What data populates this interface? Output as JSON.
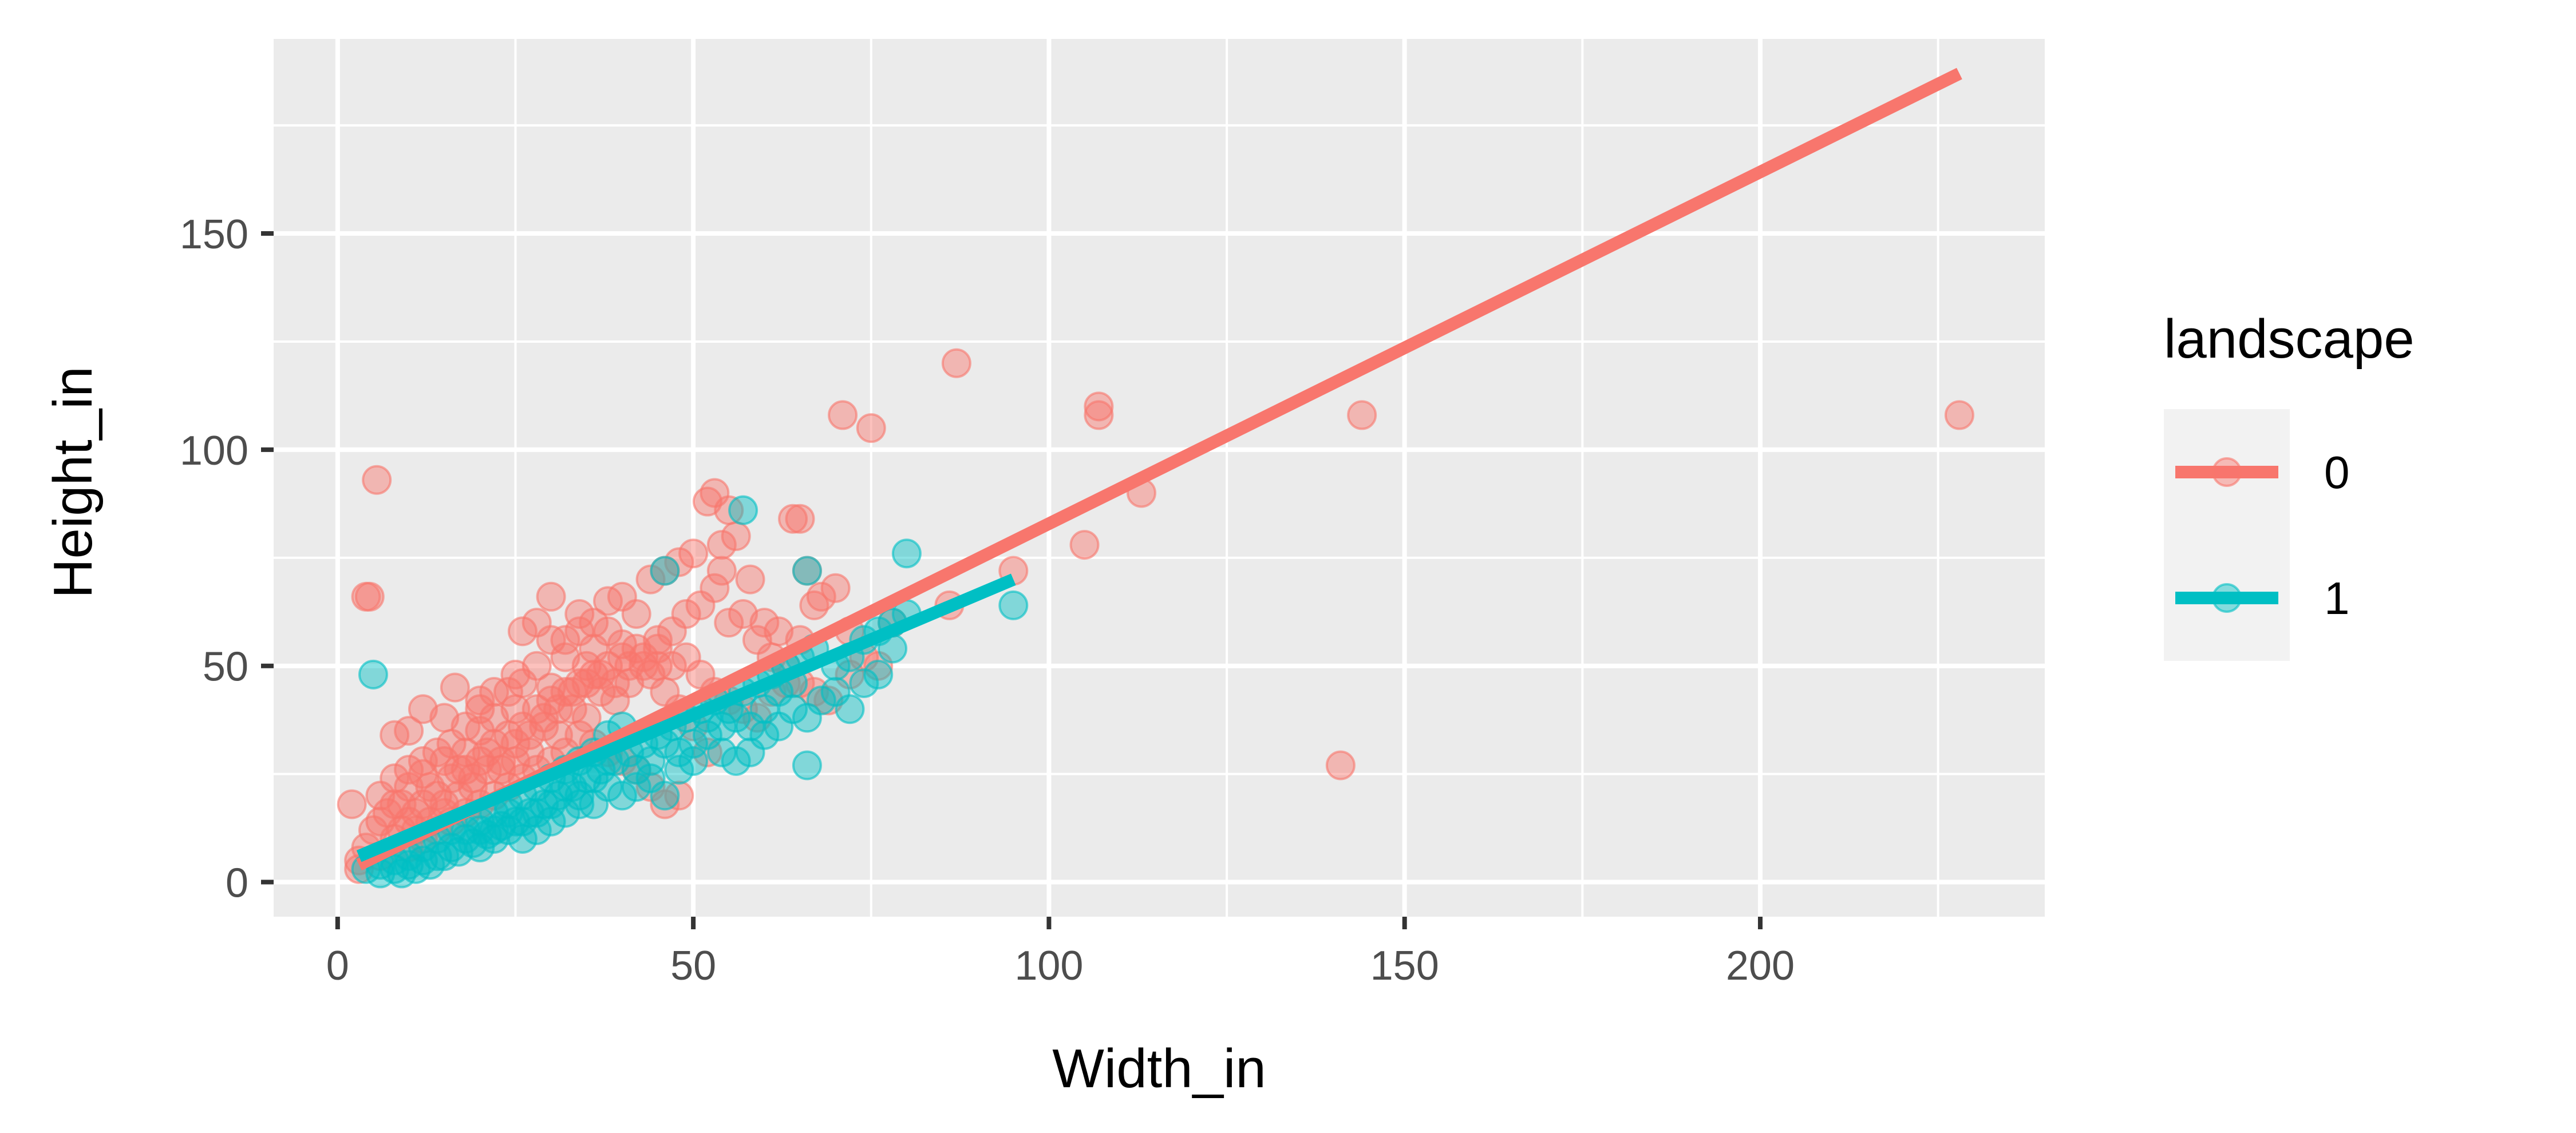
{
  "chart_data": {
    "type": "scatter",
    "title": "",
    "xlabel": "Width_in",
    "ylabel": "Height_in",
    "xlim": [
      -9,
      240
    ],
    "ylim": [
      -8,
      195
    ],
    "x_ticks": [
      0,
      50,
      100,
      150,
      200
    ],
    "y_ticks": [
      0,
      50,
      100,
      150
    ],
    "x_minor_ticks": [
      25,
      75,
      125,
      175,
      225
    ],
    "y_minor_ticks": [
      25,
      75,
      125,
      175
    ],
    "grid": true,
    "legend": {
      "title": "landscape",
      "position": "right"
    },
    "colors": {
      "0": "#F8766D",
      "1": "#00BFC4",
      "panel": "#EBEBEB",
      "grid": "#FFFFFF"
    },
    "series": [
      {
        "name": "0",
        "points": [
          [
            5.5,
            93
          ],
          [
            4.5,
            66
          ],
          [
            4,
            66
          ],
          [
            16.5,
            45
          ],
          [
            2,
            18
          ],
          [
            8,
            34
          ],
          [
            12,
            40
          ],
          [
            10,
            35
          ],
          [
            15,
            38
          ],
          [
            20,
            40
          ],
          [
            22,
            44
          ],
          [
            25,
            48
          ],
          [
            26,
            58
          ],
          [
            28,
            60
          ],
          [
            30,
            66
          ],
          [
            32,
            56
          ],
          [
            34,
            62
          ],
          [
            36,
            60
          ],
          [
            38,
            65
          ],
          [
            40,
            66
          ],
          [
            42,
            62
          ],
          [
            44,
            70
          ],
          [
            46,
            72
          ],
          [
            48,
            74
          ],
          [
            50,
            76
          ],
          [
            52,
            88
          ],
          [
            53,
            90
          ],
          [
            55,
            86
          ],
          [
            56,
            80
          ],
          [
            58,
            70
          ],
          [
            60,
            60
          ],
          [
            62,
            58
          ],
          [
            64,
            84
          ],
          [
            65,
            84
          ],
          [
            66,
            72
          ],
          [
            68,
            66
          ],
          [
            70,
            68
          ],
          [
            72,
            58
          ],
          [
            74,
            52
          ],
          [
            76,
            50
          ],
          [
            78,
            60
          ],
          [
            72,
            48
          ],
          [
            75,
            105
          ],
          [
            71,
            108
          ],
          [
            87,
            120
          ],
          [
            107,
            110
          ],
          [
            107,
            108
          ],
          [
            113,
            90
          ],
          [
            105,
            78
          ],
          [
            95,
            72
          ],
          [
            86,
            64
          ],
          [
            144,
            108
          ],
          [
            141,
            27
          ],
          [
            228,
            108
          ],
          [
            54,
            72
          ],
          [
            54,
            78
          ],
          [
            45,
            50
          ],
          [
            40,
            55
          ],
          [
            35,
            50
          ],
          [
            30,
            45
          ],
          [
            25,
            40
          ],
          [
            20,
            35
          ],
          [
            18,
            30
          ],
          [
            15,
            28
          ],
          [
            12,
            25
          ],
          [
            10,
            22
          ],
          [
            8,
            18
          ],
          [
            6,
            14
          ],
          [
            5,
            12
          ],
          [
            4,
            8
          ],
          [
            3,
            5
          ],
          [
            3,
            3
          ],
          [
            6,
            6
          ],
          [
            8,
            10
          ],
          [
            10,
            14
          ],
          [
            12,
            18
          ],
          [
            14,
            20
          ],
          [
            16,
            24
          ],
          [
            18,
            26
          ],
          [
            20,
            28
          ],
          [
            22,
            32
          ],
          [
            24,
            34
          ],
          [
            26,
            36
          ],
          [
            28,
            40
          ],
          [
            30,
            42
          ],
          [
            32,
            44
          ],
          [
            34,
            46
          ],
          [
            36,
            48
          ],
          [
            38,
            50
          ],
          [
            40,
            52
          ],
          [
            42,
            54
          ],
          [
            44,
            48
          ],
          [
            46,
            44
          ],
          [
            48,
            40
          ],
          [
            50,
            36
          ],
          [
            52,
            30
          ],
          [
            48,
            20
          ],
          [
            46,
            18
          ],
          [
            44,
            22
          ],
          [
            42,
            26
          ],
          [
            40,
            28
          ],
          [
            38,
            30
          ],
          [
            36,
            32
          ],
          [
            34,
            34
          ],
          [
            32,
            30
          ],
          [
            30,
            28
          ],
          [
            28,
            26
          ],
          [
            26,
            24
          ],
          [
            24,
            22
          ],
          [
            22,
            20
          ],
          [
            20,
            18
          ],
          [
            18,
            16
          ],
          [
            16,
            14
          ],
          [
            14,
            12
          ],
          [
            12,
            10
          ],
          [
            10,
            8
          ],
          [
            9,
            12
          ],
          [
            11,
            16
          ],
          [
            13,
            22
          ],
          [
            15,
            18
          ],
          [
            17,
            26
          ],
          [
            19,
            22
          ],
          [
            21,
            30
          ],
          [
            23,
            26
          ],
          [
            25,
            32
          ],
          [
            27,
            30
          ],
          [
            29,
            36
          ],
          [
            31,
            34
          ],
          [
            33,
            40
          ],
          [
            35,
            38
          ],
          [
            37,
            44
          ],
          [
            39,
            42
          ],
          [
            41,
            46
          ],
          [
            43,
            50
          ],
          [
            45,
            56
          ],
          [
            47,
            58
          ],
          [
            49,
            62
          ],
          [
            51,
            64
          ],
          [
            53,
            68
          ],
          [
            55,
            60
          ],
          [
            57,
            62
          ],
          [
            59,
            56
          ],
          [
            61,
            52
          ],
          [
            63,
            50
          ],
          [
            65,
            46
          ],
          [
            67,
            44
          ],
          [
            69,
            42
          ],
          [
            30,
            56
          ],
          [
            32,
            52
          ],
          [
            34,
            58
          ],
          [
            36,
            54
          ],
          [
            38,
            58
          ],
          [
            28,
            50
          ],
          [
            26,
            46
          ],
          [
            24,
            44
          ],
          [
            22,
            38
          ],
          [
            20,
            42
          ],
          [
            18,
            36
          ],
          [
            16,
            32
          ],
          [
            14,
            30
          ],
          [
            12,
            28
          ],
          [
            10,
            26
          ],
          [
            8,
            24
          ],
          [
            6,
            20
          ],
          [
            7,
            16
          ],
          [
            9,
            18
          ],
          [
            11,
            12
          ],
          [
            13,
            14
          ],
          [
            15,
            16
          ],
          [
            17,
            20
          ],
          [
            19,
            24
          ],
          [
            21,
            26
          ],
          [
            23,
            28
          ],
          [
            25,
            28
          ],
          [
            27,
            34
          ],
          [
            29,
            38
          ],
          [
            31,
            40
          ],
          [
            33,
            44
          ],
          [
            35,
            46
          ],
          [
            37,
            48
          ],
          [
            39,
            46
          ],
          [
            41,
            50
          ],
          [
            43,
            52
          ],
          [
            45,
            54
          ],
          [
            47,
            50
          ],
          [
            49,
            52
          ],
          [
            51,
            48
          ],
          [
            53,
            44
          ],
          [
            55,
            42
          ],
          [
            57,
            40
          ],
          [
            59,
            38
          ],
          [
            61,
            44
          ],
          [
            63,
            46
          ],
          [
            65,
            56
          ],
          [
            67,
            64
          ]
        ]
      },
      {
        "name": "1",
        "points": [
          [
            57,
            86
          ],
          [
            5,
            48
          ],
          [
            80,
            76
          ],
          [
            78,
            54
          ],
          [
            95,
            64
          ],
          [
            66,
            72
          ],
          [
            46,
            72
          ],
          [
            66,
            27
          ],
          [
            46,
            20
          ],
          [
            64,
            40
          ],
          [
            68,
            42
          ],
          [
            70,
            44
          ],
          [
            72,
            40
          ],
          [
            74,
            46
          ],
          [
            76,
            48
          ],
          [
            66,
            38
          ],
          [
            62,
            36
          ],
          [
            60,
            34
          ],
          [
            58,
            36
          ],
          [
            56,
            28
          ],
          [
            54,
            30
          ],
          [
            52,
            34
          ],
          [
            50,
            28
          ],
          [
            48,
            26
          ],
          [
            44,
            24
          ],
          [
            42,
            22
          ],
          [
            40,
            20
          ],
          [
            38,
            22
          ],
          [
            36,
            18
          ],
          [
            34,
            20
          ],
          [
            32,
            16
          ],
          [
            30,
            14
          ],
          [
            28,
            12
          ],
          [
            26,
            10
          ],
          [
            24,
            12
          ],
          [
            22,
            10
          ],
          [
            20,
            8
          ],
          [
            18,
            10
          ],
          [
            16,
            8
          ],
          [
            14,
            6
          ],
          [
            12,
            5
          ],
          [
            10,
            4
          ],
          [
            8,
            3
          ],
          [
            6,
            2
          ],
          [
            4,
            3
          ],
          [
            9,
            2
          ],
          [
            11,
            3
          ],
          [
            13,
            4
          ],
          [
            15,
            6
          ],
          [
            17,
            7
          ],
          [
            19,
            9
          ],
          [
            21,
            11
          ],
          [
            23,
            13
          ],
          [
            25,
            14
          ],
          [
            27,
            16
          ],
          [
            29,
            18
          ],
          [
            31,
            20
          ],
          [
            33,
            22
          ],
          [
            35,
            24
          ],
          [
            37,
            26
          ],
          [
            39,
            28
          ],
          [
            41,
            30
          ],
          [
            43,
            32
          ],
          [
            45,
            34
          ],
          [
            47,
            36
          ],
          [
            49,
            38
          ],
          [
            51,
            40
          ],
          [
            53,
            42
          ],
          [
            55,
            40
          ],
          [
            57,
            44
          ],
          [
            59,
            46
          ],
          [
            61,
            48
          ],
          [
            63,
            50
          ],
          [
            65,
            52
          ],
          [
            67,
            54
          ],
          [
            40,
            36
          ],
          [
            38,
            34
          ],
          [
            36,
            30
          ],
          [
            34,
            28
          ],
          [
            32,
            26
          ],
          [
            30,
            24
          ],
          [
            28,
            22
          ],
          [
            26,
            20
          ],
          [
            24,
            18
          ],
          [
            22,
            16
          ],
          [
            20,
            14
          ],
          [
            18,
            12
          ],
          [
            16,
            12
          ],
          [
            14,
            10
          ],
          [
            12,
            8
          ],
          [
            10,
            6
          ],
          [
            8,
            5
          ],
          [
            6,
            4
          ],
          [
            48,
            30
          ],
          [
            50,
            32
          ],
          [
            52,
            38
          ],
          [
            54,
            36
          ],
          [
            56,
            38
          ],
          [
            58,
            30
          ],
          [
            44,
            28
          ],
          [
            42,
            26
          ],
          [
            46,
            32
          ],
          [
            36,
            24
          ],
          [
            38,
            28
          ],
          [
            34,
            18
          ],
          [
            32,
            22
          ],
          [
            30,
            18
          ],
          [
            28,
            16
          ],
          [
            26,
            14
          ],
          [
            24,
            16
          ],
          [
            22,
            12
          ],
          [
            20,
            12
          ],
          [
            60,
            40
          ],
          [
            62,
            44
          ],
          [
            64,
            46
          ],
          [
            70,
            50
          ],
          [
            72,
            52
          ],
          [
            74,
            56
          ],
          [
            76,
            58
          ],
          [
            78,
            60
          ],
          [
            80,
            62
          ]
        ]
      }
    ],
    "fit_lines": [
      {
        "name": "0",
        "x": [
          3,
          228
        ],
        "y": [
          4,
          187
        ]
      },
      {
        "name": "1",
        "x": [
          3,
          95
        ],
        "y": [
          6,
          70
        ]
      }
    ]
  }
}
